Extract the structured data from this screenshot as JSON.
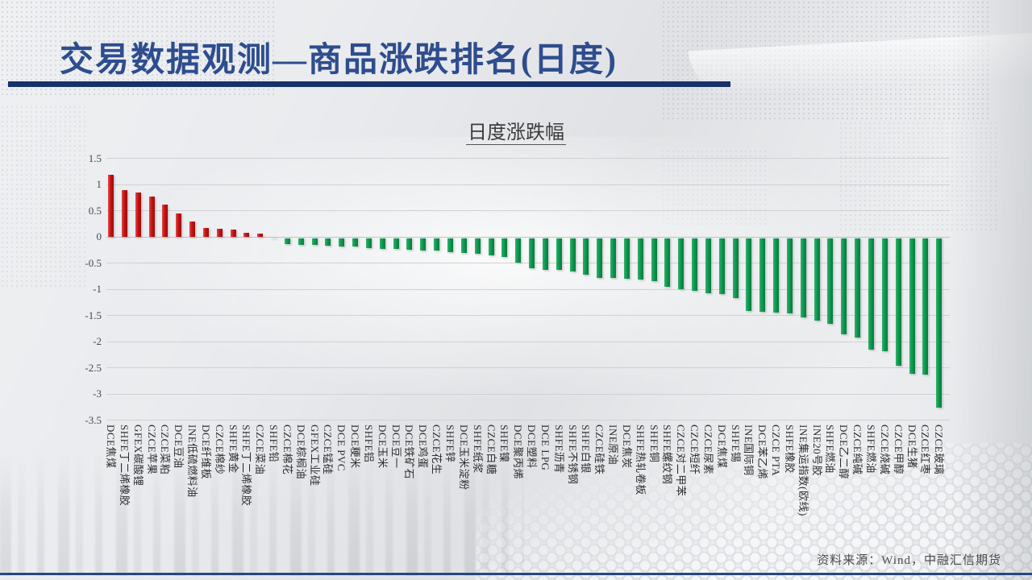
{
  "slide": {
    "title": "交易数据观测—商品涨跌排名(日度)",
    "source": "资料来源：Wind，中融汇信期货"
  },
  "chart_data": {
    "type": "bar",
    "title": "日度涨跌幅",
    "title_underlined": true,
    "xlabel": "",
    "ylabel": "",
    "ylim": [
      -3.5,
      1.5
    ],
    "ytick_step": 0.5,
    "yticks": [
      "1.5",
      "1",
      "0.5",
      "0",
      "-0.5",
      "-1",
      "-1.5",
      "-2",
      "-2.5",
      "-3",
      "-3.5"
    ],
    "grid": true,
    "legend": "none",
    "positive_color": "#c51414",
    "negative_color": "#0c9a4f",
    "x_labels_rotated_deg": 90,
    "categories": [
      "DCE焦煤",
      "SHFE丁二烯橡胶",
      "GFEX碳酸锂",
      "CZCE苹果",
      "CZCE菜粕",
      "DCE豆油",
      "INE低硫燃料油",
      "DCE纤维板",
      "CZCE棉纱",
      "SHFE黄金",
      "SHFE丁二烯橡胶",
      "CZCE菜油",
      "SHFE铅",
      "CZCE棉花",
      "DCE棕榈油",
      "GFEX工业硅",
      "CZCE锰硅",
      "DCE PVC",
      "DCE粳米",
      "SHFE铝",
      "DCE玉米",
      "DCE豆一",
      "DCE铁矿石",
      "DCE鸡蛋",
      "CZCE花生",
      "SHFE锌",
      "DCE玉米淀粉",
      "SHFE纸浆",
      "CZCE白糖",
      "SHFE镍",
      "DCE聚丙烯",
      "DCE塑料",
      "DCE LPG",
      "SHFE沥青",
      "SHFE不锈钢",
      "SHFE白银",
      "CZCE硅铁",
      "INE原油",
      "DCE焦炭",
      "SHFE热轧卷板",
      "SHFE铜",
      "SHFE螺纹钢",
      "CZCE对二甲苯",
      "CZCE短纤",
      "CZCE尿素",
      "DCE焦煤",
      "SHFE锡",
      "INE国际铜",
      "DCE苯乙烯",
      "CZCE PTA",
      "SHFE橡胶",
      "INE集运指数(欧线)",
      "INE20号胶",
      "SHFE燃油",
      "DCE乙二醇",
      "CZCE纯碱",
      "SHFE燃油",
      "CZCE烧碱",
      "CZCE甲醇",
      "DCE生猪",
      "CZCE红枣",
      "CZCE玻璃"
    ],
    "values": [
      1.19,
      0.9,
      0.84,
      0.77,
      0.61,
      0.45,
      0.29,
      0.17,
      0.15,
      0.14,
      0.07,
      0.06,
      -0.01,
      -0.13,
      -0.15,
      -0.15,
      -0.16,
      -0.18,
      -0.18,
      -0.21,
      -0.22,
      -0.23,
      -0.24,
      -0.25,
      -0.26,
      -0.28,
      -0.3,
      -0.32,
      -0.34,
      -0.37,
      -0.48,
      -0.59,
      -0.62,
      -0.63,
      -0.66,
      -0.72,
      -0.77,
      -0.78,
      -0.79,
      -0.81,
      -0.84,
      -0.95,
      -0.99,
      -1.03,
      -1.07,
      -1.09,
      -1.16,
      -1.4,
      -1.43,
      -1.44,
      -1.45,
      -1.53,
      -1.59,
      -1.66,
      -1.85,
      -1.91,
      -2.14,
      -2.18,
      -2.45,
      -2.6,
      -2.62,
      -3.25
    ]
  }
}
